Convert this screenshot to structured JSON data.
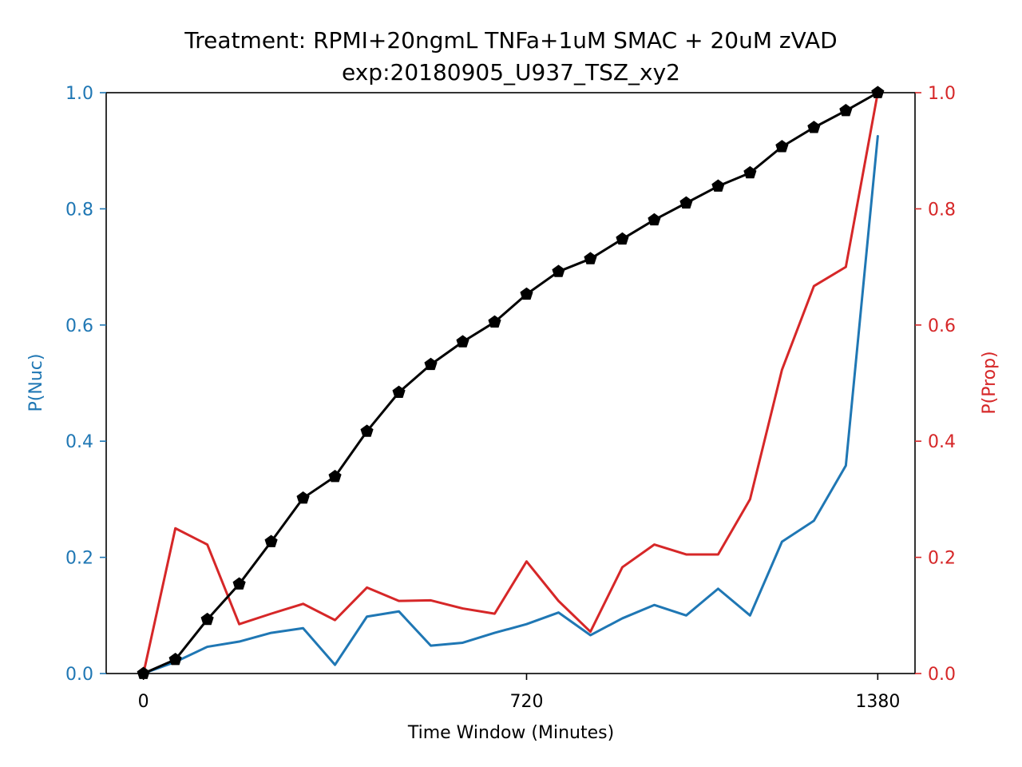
{
  "chart_data": {
    "type": "line",
    "title": "Treatment: RPMI+20ngmL TNFa+1uM SMAC + 20uM zVAD",
    "subtitle": "exp:20180905_U937_TSZ_xy2",
    "xlabel": "Time Window (Minutes)",
    "ylabel_left": "P(Nuc)",
    "ylabel_right": "P(Prop)",
    "xlim": [
      -70,
      1450
    ],
    "ylim_left": [
      0,
      1
    ],
    "ylim_right": [
      0,
      1
    ],
    "x_ticks": [
      0,
      720,
      1380
    ],
    "y_ticks_left": [
      "0.0",
      "0.2",
      "0.4",
      "0.6",
      "0.8",
      "1.0"
    ],
    "y_ticks_right": [
      "0.0",
      "0.2",
      "0.4",
      "0.6",
      "0.8",
      "1.0"
    ],
    "grid": false,
    "colors": {
      "left": "#1f77b4",
      "right": "#d62728",
      "cumulative": "#000000"
    },
    "x": [
      0,
      60,
      120,
      180,
      240,
      300,
      360,
      420,
      480,
      540,
      600,
      660,
      720,
      780,
      840,
      900,
      960,
      1020,
      1080,
      1140,
      1200,
      1260,
      1320,
      1380
    ],
    "series": [
      {
        "axis": "left",
        "color": "#1f77b4",
        "values": [
          0.0,
          0.02,
          0.046,
          0.055,
          0.07,
          0.078,
          0.015,
          0.098,
          0.107,
          0.048,
          0.053,
          0.07,
          0.085,
          0.105,
          0.066,
          0.095,
          0.118,
          0.1,
          0.146,
          0.1,
          0.227,
          0.263,
          0.358,
          0.925
        ]
      },
      {
        "axis": "right",
        "color": "#d62728",
        "values": [
          0.0,
          0.25,
          0.222,
          0.085,
          0.103,
          0.12,
          0.092,
          0.148,
          0.125,
          0.126,
          0.112,
          0.103,
          0.193,
          0.125,
          0.072,
          0.183,
          0.222,
          0.205,
          0.205,
          0.3,
          0.523,
          0.667,
          0.7,
          1.0
        ]
      },
      {
        "axis": "left",
        "color": "#000000",
        "marker": "pentagon",
        "values": [
          0.0,
          0.024,
          0.093,
          0.154,
          0.227,
          0.302,
          0.339,
          0.417,
          0.484,
          0.532,
          0.571,
          0.605,
          0.653,
          0.692,
          0.714,
          0.748,
          0.781,
          0.81,
          0.839,
          0.862,
          0.907,
          0.94,
          0.969,
          1.0
        ]
      }
    ]
  }
}
